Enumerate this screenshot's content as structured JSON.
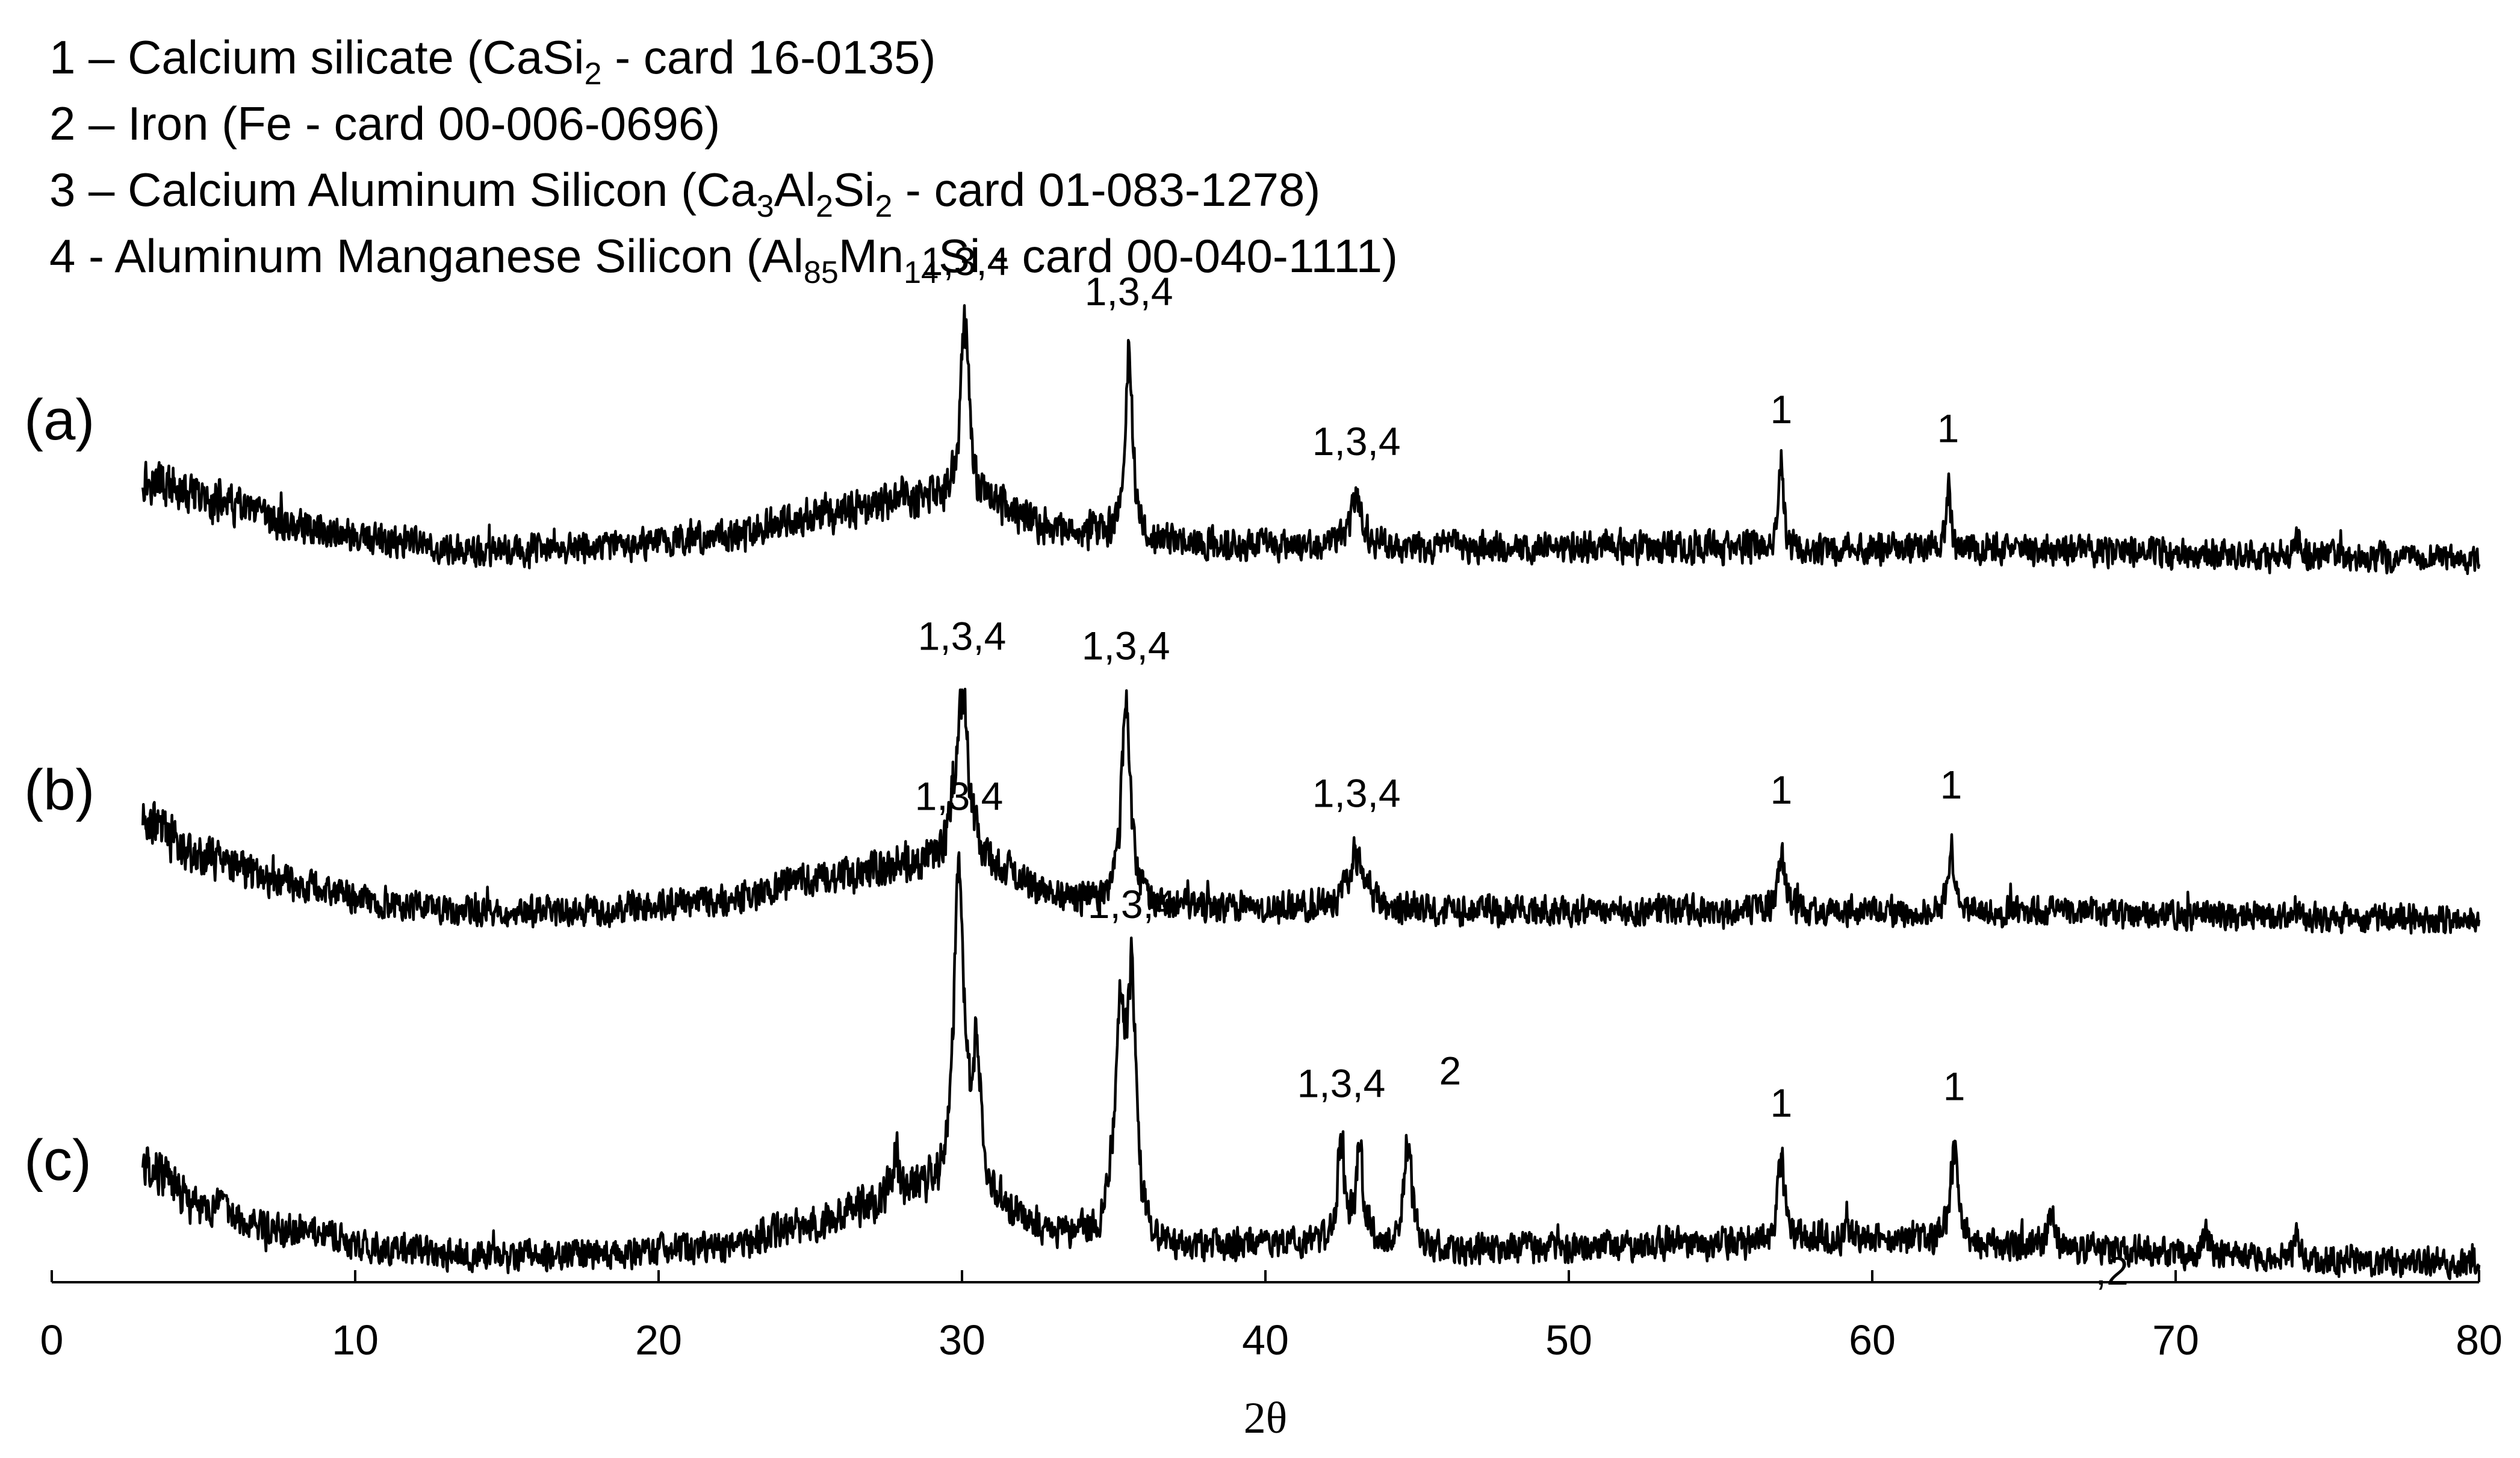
{
  "legend": [
    {
      "parts": [
        {
          "t": "1 – Calcium silicate (CaSi"
        },
        {
          "t": "2",
          "sub": true
        },
        {
          "t": " - card 16-0135)"
        }
      ]
    },
    {
      "parts": [
        {
          "t": "2 – Iron (Fe - card 00-006-0696)"
        }
      ]
    },
    {
      "parts": [
        {
          "t": "3 – Calcium Aluminum Silicon (Ca"
        },
        {
          "t": "3",
          "sub": true
        },
        {
          "t": "Al"
        },
        {
          "t": "2",
          "sub": true
        },
        {
          "t": "Si"
        },
        {
          "t": "2",
          "sub": true
        },
        {
          "t": " - card 01-083-1278)"
        }
      ]
    },
    {
      "parts": [
        {
          "t": "4 - Aluminum Manganese Silicon (Al"
        },
        {
          "t": "85",
          "sub": true
        },
        {
          "t": "Mn"
        },
        {
          "t": "14",
          "sub": true
        },
        {
          "t": "Si - card 00-040-1111)"
        }
      ]
    }
  ],
  "chart_data": {
    "type": "line",
    "xlabel": "2θ",
    "ylabel": "",
    "xlim": [
      0,
      80
    ],
    "x_ticks": [
      0,
      10,
      20,
      30,
      40,
      50,
      60,
      70,
      80
    ],
    "y_axis_shown": false,
    "grid": false,
    "series": [
      {
        "name": "(a)",
        "x_range": [
          3,
          80
        ],
        "baseline_points": [
          [
            3,
            0.8
          ],
          [
            5,
            0.62
          ],
          [
            8,
            0.4
          ],
          [
            11,
            0.25
          ],
          [
            14,
            0.16
          ],
          [
            18,
            0.2
          ],
          [
            22,
            0.3
          ],
          [
            26,
            0.5
          ],
          [
            28,
            0.64
          ],
          [
            31,
            0.58
          ],
          [
            33,
            0.36
          ],
          [
            37,
            0.24
          ],
          [
            42,
            0.22
          ],
          [
            47,
            0.2
          ],
          [
            55,
            0.2
          ],
          [
            65,
            0.18
          ],
          [
            75,
            0.12
          ],
          [
            80,
            0.1
          ]
        ],
        "peaks": [
          {
            "x": 30.1,
            "height": 1.6,
            "width": 0.35,
            "label": "1,3,4"
          },
          {
            "x": 35.5,
            "height": 1.65,
            "width": 0.3,
            "label": "1,3,4"
          },
          {
            "x": 43.0,
            "height": 0.4,
            "width": 0.5,
            "label": "1,3,4"
          },
          {
            "x": 57.0,
            "height": 0.7,
            "width": 0.18,
            "label": "1"
          },
          {
            "x": 62.5,
            "height": 0.55,
            "width": 0.18,
            "label": "1"
          },
          {
            "x": 74.0,
            "height": 0.14,
            "width": 0.25
          }
        ]
      },
      {
        "name": "(b)",
        "x_range": [
          3,
          80
        ],
        "baseline_points": [
          [
            3,
            0.95
          ],
          [
            5,
            0.62
          ],
          [
            8,
            0.38
          ],
          [
            11,
            0.22
          ],
          [
            14,
            0.12
          ],
          [
            18,
            0.15
          ],
          [
            22,
            0.24
          ],
          [
            26,
            0.45
          ],
          [
            28,
            0.54
          ],
          [
            31,
            0.46
          ],
          [
            34,
            0.22
          ],
          [
            37,
            0.16
          ],
          [
            42,
            0.16
          ],
          [
            47,
            0.14
          ],
          [
            55,
            0.14
          ],
          [
            65,
            0.13
          ],
          [
            75,
            0.08
          ],
          [
            80,
            0.06
          ]
        ],
        "peaks": [
          {
            "x": 30.0,
            "height": 1.55,
            "width": 0.55,
            "label": "1,3,4"
          },
          {
            "x": 35.4,
            "height": 1.75,
            "width": 0.35,
            "label": "1,3,4"
          },
          {
            "x": 43.0,
            "height": 0.5,
            "width": 0.6,
            "label": "1,3,4"
          },
          {
            "x": 57.0,
            "height": 0.55,
            "width": 0.25,
            "label": "1"
          },
          {
            "x": 62.6,
            "height": 0.6,
            "width": 0.22,
            "label": "1"
          },
          {
            "x": 74.0,
            "height": 0.1,
            "width": 0.25
          }
        ]
      },
      {
        "name": "(c)",
        "x_range": [
          3,
          80
        ],
        "baseline_points": [
          [
            3,
            0.95
          ],
          [
            5,
            0.55
          ],
          [
            8,
            0.34
          ],
          [
            11,
            0.2
          ],
          [
            14,
            0.13
          ],
          [
            18,
            0.16
          ],
          [
            22,
            0.22
          ],
          [
            25,
            0.4
          ],
          [
            27,
            0.58
          ],
          [
            28.5,
            0.7
          ],
          [
            31,
            0.52
          ],
          [
            33,
            0.32
          ],
          [
            37,
            0.2
          ],
          [
            40,
            0.24
          ],
          [
            47,
            0.2
          ],
          [
            55,
            0.24
          ],
          [
            60,
            0.3
          ],
          [
            65,
            0.22
          ],
          [
            75,
            0.1
          ],
          [
            80,
            0.06
          ]
        ],
        "peaks": [
          {
            "x": 27.8,
            "height": 0.4,
            "width": 0.25
          },
          {
            "x": 29.9,
            "height": 2.95,
            "width": 0.4,
            "label": "1,3,4"
          },
          {
            "x": 30.5,
            "height": 1.2,
            "width": 0.35
          },
          {
            "x": 35.2,
            "height": 1.8,
            "width": 0.4
          },
          {
            "x": 35.6,
            "height": 2.1,
            "width": 0.35,
            "label": "1,3,4"
          },
          {
            "x": 42.5,
            "height": 0.85,
            "width": 0.3,
            "label": "1,3,4"
          },
          {
            "x": 43.1,
            "height": 0.8,
            "width": 0.3
          },
          {
            "x": 44.7,
            "height": 0.95,
            "width": 0.3,
            "label": "2"
          },
          {
            "x": 57.0,
            "height": 0.7,
            "width": 0.3,
            "label": "1"
          },
          {
            "x": 62.7,
            "height": 0.85,
            "width": 0.3,
            "label": "1"
          },
          {
            "x": 65.9,
            "height": 0.3,
            "width": 0.25
          },
          {
            "x": 71.0,
            "height": 0.15,
            "width": 0.3
          },
          {
            "x": 74.0,
            "height": 0.18,
            "width": 0.25
          }
        ],
        "extra_labels": [
          {
            "x": 67.9,
            "text": ",2"
          }
        ]
      }
    ]
  }
}
